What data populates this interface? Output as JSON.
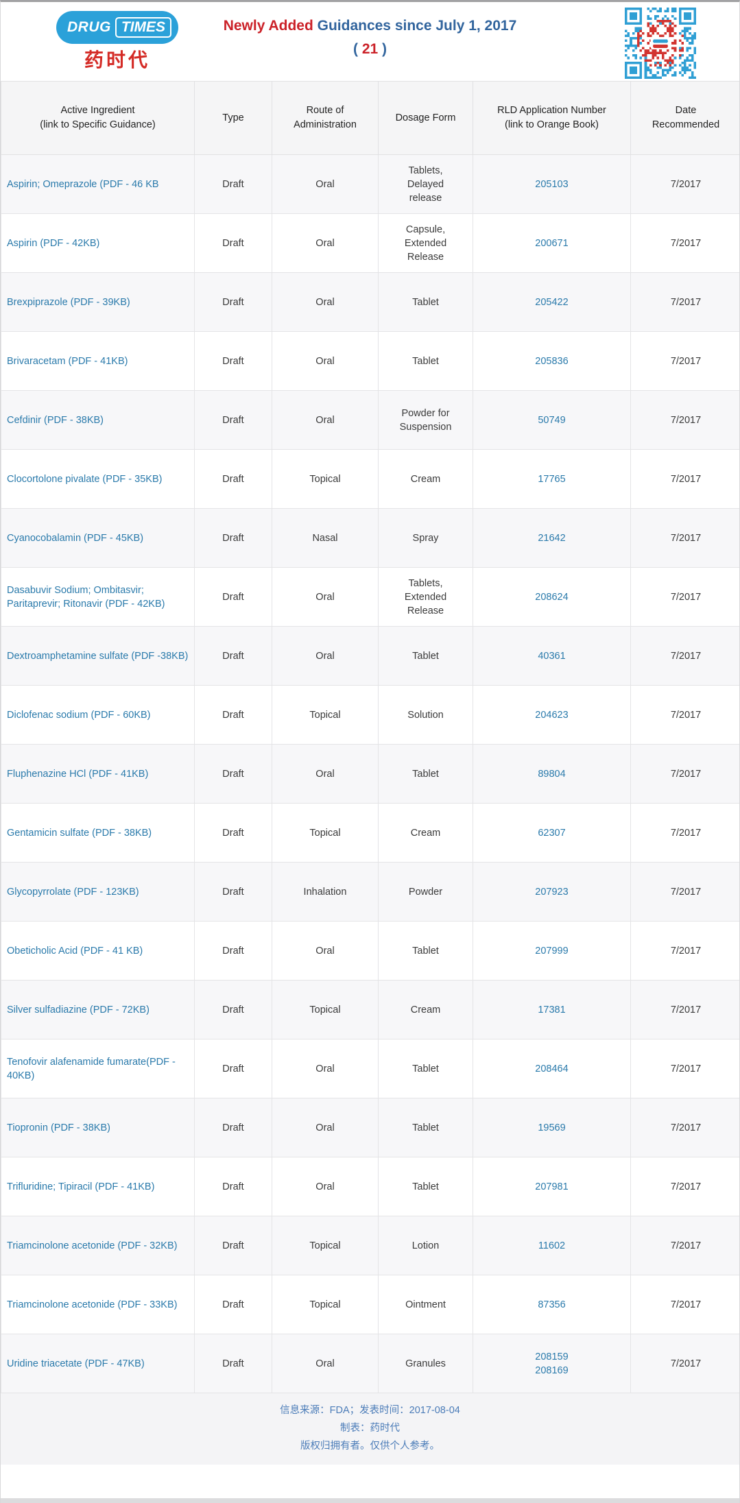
{
  "colors": {
    "logo_blue": "#2ba1d9",
    "logo_red": "#d42b26",
    "title_red": "#cb2128",
    "title_blue": "#31649d",
    "link_blue": "#2a7aab",
    "qr_blue": "#2f9fd4",
    "qr_red": "#d23430"
  },
  "banner": {
    "logo_drug": "DRUG",
    "logo_times": "TIMES",
    "logo_cn": "药时代",
    "title_red_part": "Newly Added",
    "title_blue_part": " Guidances since July 1, 2017",
    "count_open": "( ",
    "count": "21",
    "count_close": " )"
  },
  "table": {
    "columns": [
      "Active Ingredient\n(link to Specific Guidance)",
      "Type",
      "Route of\nAdministration",
      "Dosage Form",
      "RLD Application Number\n(link to Orange Book)",
      "Date\nRecommended"
    ],
    "rows": [
      {
        "ingredient": "Aspirin; Omeprazole (PDF - 46 KB",
        "type": "Draft",
        "route": "Oral",
        "dosage": "Tablets,\nDelayed\nrelease",
        "rld": "205103",
        "date": "7/2017"
      },
      {
        "ingredient": "Aspirin (PDF - 42KB)",
        "type": "Draft",
        "route": "Oral",
        "dosage": "Capsule,\nExtended\nRelease",
        "rld": "200671",
        "date": "7/2017"
      },
      {
        "ingredient": "Brexpiprazole (PDF - 39KB)",
        "type": "Draft",
        "route": "Oral",
        "dosage": "Tablet",
        "rld": "205422",
        "date": "7/2017"
      },
      {
        "ingredient": "Brivaracetam  (PDF - 41KB)",
        "type": "Draft",
        "route": "Oral",
        "dosage": "Tablet",
        "rld": "205836",
        "date": "7/2017"
      },
      {
        "ingredient": "Cefdinir (PDF - 38KB)",
        "type": "Draft",
        "route": "Oral",
        "dosage": "Powder for\nSuspension",
        "rld": "50749",
        "date": "7/2017"
      },
      {
        "ingredient": "Clocortolone pivalate (PDF - 35KB)",
        "type": "Draft",
        "route": "Topical",
        "dosage": "Cream",
        "rld": "17765",
        "date": "7/2017"
      },
      {
        "ingredient": "Cyanocobalamin (PDF - 45KB)",
        "type": "Draft",
        "route": "Nasal",
        "dosage": "Spray",
        "rld": "21642",
        "date": "7/2017"
      },
      {
        "ingredient": "Dasabuvir Sodium; Ombitasvir; Paritaprevir; Ritonavir (PDF - 42KB)",
        "type": "Draft",
        "route": "Oral",
        "dosage": "Tablets,\nExtended\nRelease",
        "rld": "208624",
        "date": "7/2017"
      },
      {
        "ingredient": "Dextroamphetamine sulfate (PDF -38KB)",
        "type": "Draft",
        "route": "Oral",
        "dosage": "Tablet",
        "rld": "40361",
        "date": "7/2017"
      },
      {
        "ingredient": "Diclofenac sodium (PDF - 60KB)",
        "type": "Draft",
        "route": "Topical",
        "dosage": "Solution",
        "rld": "204623",
        "date": "7/2017"
      },
      {
        "ingredient": "Fluphenazine HCl (PDF - 41KB)",
        "type": "Draft",
        "route": "Oral",
        "dosage": "Tablet",
        "rld": "89804",
        "date": "7/2017"
      },
      {
        "ingredient": "Gentamicin sulfate (PDF - 38KB)",
        "type": "Draft",
        "route": "Topical",
        "dosage": "Cream",
        "rld": "62307",
        "date": "7/2017"
      },
      {
        "ingredient": "Glycopyrrolate (PDF - 123KB)",
        "type": "Draft",
        "route": "Inhalation",
        "dosage": "Powder",
        "rld": "207923",
        "date": "7/2017"
      },
      {
        "ingredient": "Obeticholic Acid (PDF - 41 KB)",
        "type": "Draft",
        "route": "Oral",
        "dosage": "Tablet",
        "rld": "207999",
        "date": "7/2017"
      },
      {
        "ingredient": "Silver sulfadiazine (PDF - 72KB)",
        "type": "Draft",
        "route": "Topical",
        "dosage": "Cream",
        "rld": "17381",
        "date": "7/2017"
      },
      {
        "ingredient": "Tenofovir alafenamide fumarate(PDF - 40KB)",
        "type": "Draft",
        "route": "Oral",
        "dosage": "Tablet",
        "rld": "208464",
        "date": "7/2017"
      },
      {
        "ingredient": "Tiopronin (PDF - 38KB)",
        "type": "Draft",
        "route": "Oral",
        "dosage": "Tablet",
        "rld": "19569",
        "date": "7/2017"
      },
      {
        "ingredient": "Trifluridine; Tipiracil (PDF - 41KB)",
        "type": "Draft",
        "route": "Oral",
        "dosage": "Tablet",
        "rld": "207981",
        "date": "7/2017"
      },
      {
        "ingredient": "Triamcinolone acetonide (PDF - 32KB)",
        "type": "Draft",
        "route": "Topical",
        "dosage": "Lotion",
        "rld": "11602",
        "date": "7/2017"
      },
      {
        "ingredient": "Triamcinolone acetonide  (PDF - 33KB)",
        "type": "Draft",
        "route": "Topical",
        "dosage": "Ointment",
        "rld": "87356",
        "date": "7/2017"
      },
      {
        "ingredient": "Uridine triacetate (PDF - 47KB)",
        "type": "Draft",
        "route": "Oral",
        "dosage": "Granules",
        "rld": "208159\n208169",
        "date": "7/2017"
      }
    ]
  },
  "footer": {
    "line1": "信息来源：FDA；发表时间：2017-08-04",
    "line2": "制表：药时代",
    "line3": "版权归拥有者。仅供个人参考。"
  }
}
